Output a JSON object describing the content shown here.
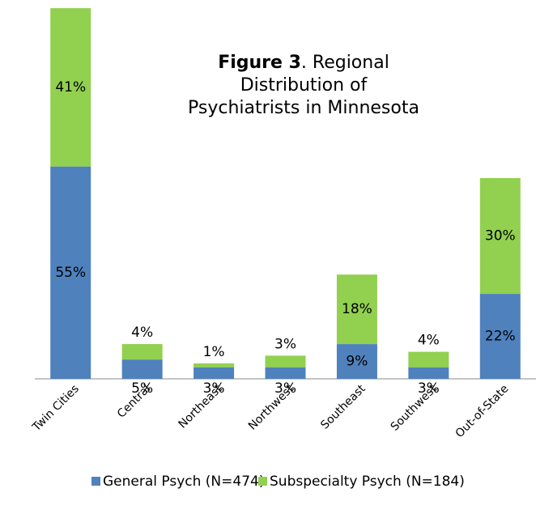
{
  "chart_data": {
    "type": "stacked_bar",
    "title": [
      "Figure 3",
      ". Regional Distribution of Psychiatrists in Minnesota"
    ],
    "categories": [
      "Twin Cities",
      "Central",
      "Northeast",
      "Northwest",
      "Southeast",
      "Southwest",
      "Out-of-State"
    ],
    "series": [
      {
        "name": "General Psych (N=474)",
        "color": "#4f81bd",
        "values": [
          55,
          5,
          3,
          3,
          9,
          3,
          22
        ],
        "value_labels": [
          "55%",
          "5%",
          "3%",
          "3%",
          "9%",
          "3%",
          "22%"
        ]
      },
      {
        "name": "Subspecialty Psych (N=184)",
        "color": "#92d050",
        "values": [
          41,
          4,
          1,
          3,
          18,
          4,
          30
        ],
        "value_labels": [
          "41%",
          "4%",
          "1%",
          "3%",
          "18%",
          "4%",
          "30%"
        ]
      }
    ]
  }
}
